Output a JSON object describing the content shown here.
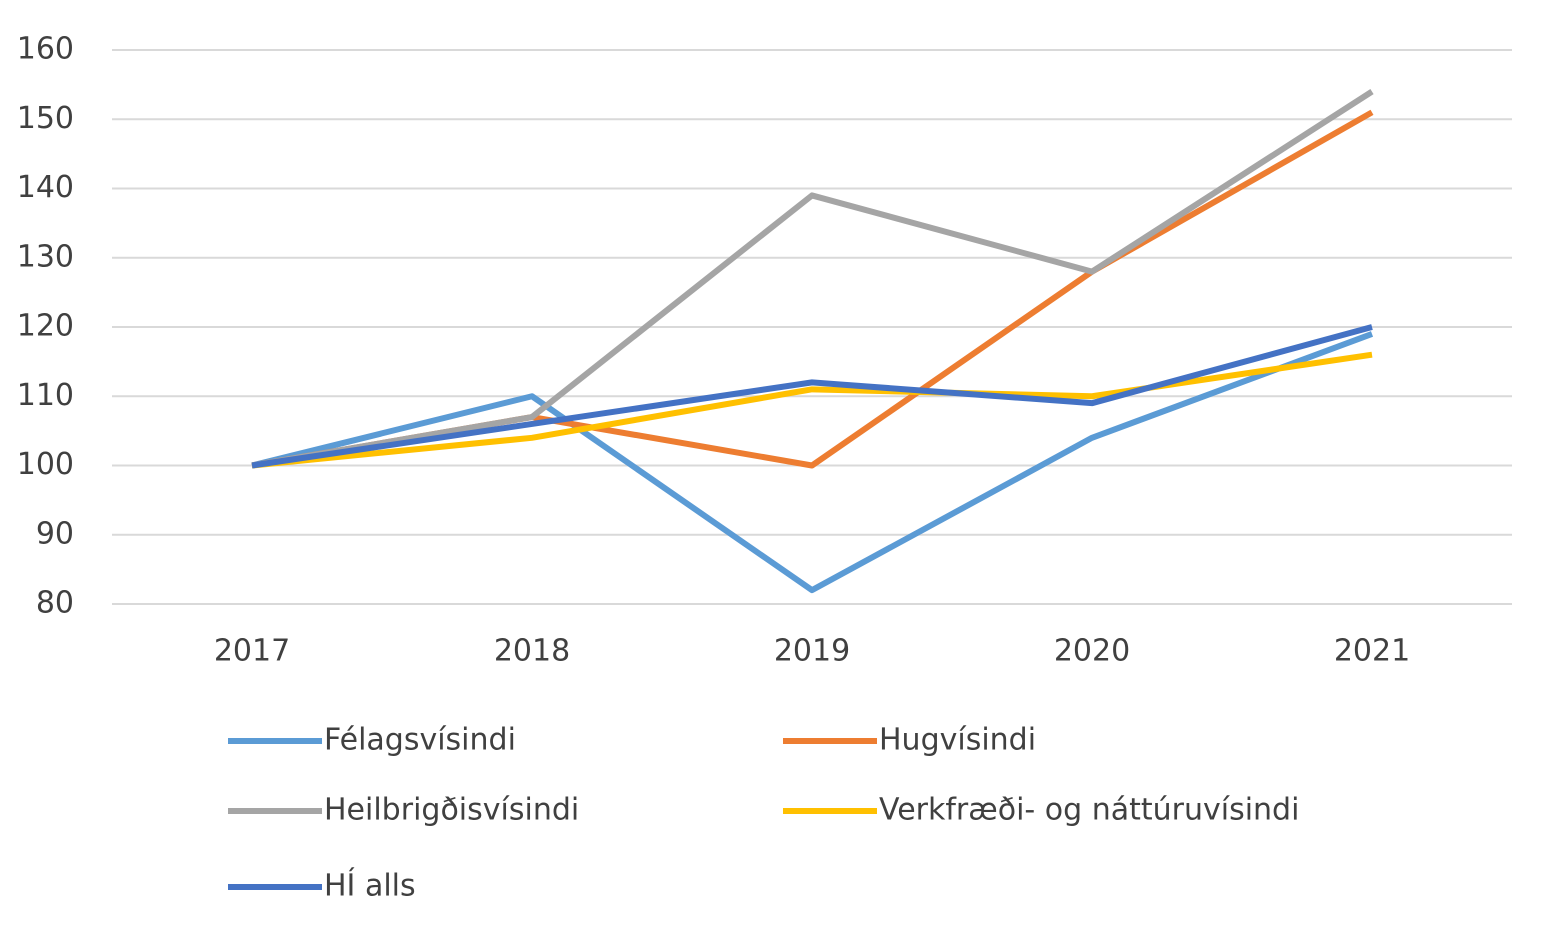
{
  "chart_data": {
    "type": "line",
    "categories": [
      "2017",
      "2018",
      "2019",
      "2020",
      "2021"
    ],
    "series": [
      {
        "name": "Félagsvísindi",
        "color": "#5b9bd5",
        "values": [
          100,
          110,
          82,
          104,
          119
        ]
      },
      {
        "name": "Hugvísindi",
        "color": "#ed7d31",
        "values": [
          100,
          107,
          100,
          128,
          151
        ]
      },
      {
        "name": "Heilbrigðisvísindi",
        "color": "#a5a5a5",
        "values": [
          100,
          107,
          139,
          128,
          154
        ]
      },
      {
        "name": "Verkfræði- og náttúruvísindi",
        "color": "#ffc000",
        "values": [
          100,
          104,
          111,
          110,
          116
        ]
      },
      {
        "name": "HÍ alls",
        "color": "#4472c4",
        "values": [
          100,
          106,
          112,
          109,
          120
        ]
      }
    ],
    "ylim": [
      80,
      160
    ],
    "yticks": [
      80,
      90,
      100,
      110,
      120,
      130,
      140,
      150,
      160
    ],
    "grid": true,
    "legend": "bottom"
  }
}
